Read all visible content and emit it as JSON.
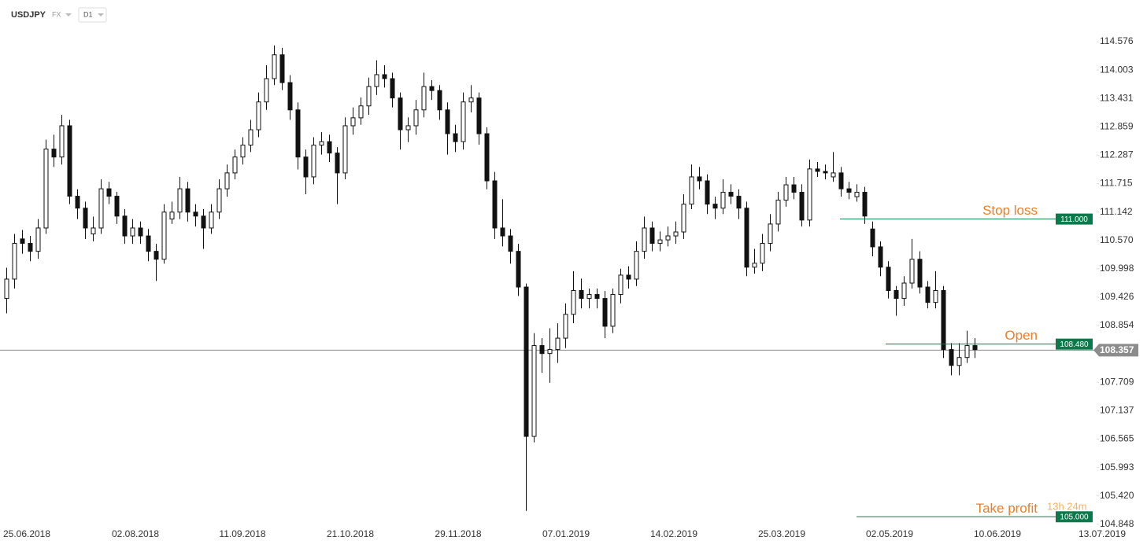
{
  "header": {
    "symbol": "USDJPY",
    "market": "FX",
    "timeframe": "D1"
  },
  "chart_data": {
    "type": "candlestick",
    "ylim": [
      104.64,
      114.86
    ],
    "yticks": [
      114.576,
      114.003,
      113.431,
      112.859,
      112.287,
      111.715,
      111.142,
      {
        "value": 110.57,
        "label": "110.570"
      },
      109.998,
      109.426,
      108.854,
      107.709,
      107.137,
      106.565,
      105.993,
      {
        "value": 105.42,
        "label": "105.420"
      },
      104.848
    ],
    "xlim": [
      -0.8,
      139.2
    ],
    "xticks": [
      {
        "value": 2.6,
        "label": "25.06.2018"
      },
      {
        "value": 16.4,
        "label": "02.08.2018"
      },
      {
        "value": 30,
        "label": "11.09.2018"
      },
      {
        "value": 43.7,
        "label": "21.10.2018"
      },
      {
        "value": 57.4,
        "label": "29.11.2018"
      },
      {
        "value": 71.1,
        "label": "07.01.2019"
      },
      {
        "value": 84.8,
        "label": "14.02.2019"
      },
      {
        "value": 98.5,
        "label": "25.03.2019"
      },
      {
        "value": 112.2,
        "label": "02.05.2019"
      },
      {
        "value": 125.9,
        "label": "10.06.2019"
      },
      {
        "value": 139.2,
        "label": "13.07.2019"
      }
    ],
    "up_color": "#ffffff",
    "down_color": "#111111",
    "outline_color": "#111111",
    "ohlc": [
      [
        109.4,
        110.02,
        109.1,
        109.79
      ],
      [
        109.79,
        110.7,
        109.6,
        110.51
      ],
      [
        110.6,
        110.78,
        110.3,
        110.51
      ],
      [
        110.51,
        110.66,
        110.15,
        110.35
      ],
      [
        110.35,
        111.0,
        110.2,
        110.82
      ],
      [
        110.82,
        112.6,
        110.7,
        112.41
      ],
      [
        112.41,
        112.7,
        112.05,
        112.25
      ],
      [
        112.25,
        113.1,
        112.1,
        112.88
      ],
      [
        112.88,
        113.0,
        111.3,
        111.46
      ],
      [
        111.46,
        111.6,
        111.0,
        111.22
      ],
      [
        111.22,
        111.35,
        110.6,
        110.82
      ],
      [
        110.7,
        111.05,
        110.55,
        110.82
      ],
      [
        110.82,
        111.8,
        110.7,
        111.61
      ],
      [
        111.61,
        111.75,
        111.3,
        111.46
      ],
      [
        111.46,
        111.55,
        110.9,
        111.06
      ],
      [
        111.06,
        111.2,
        110.5,
        110.66
      ],
      [
        110.66,
        111.0,
        110.5,
        110.82
      ],
      [
        110.82,
        110.95,
        110.5,
        110.66
      ],
      [
        110.66,
        110.8,
        110.15,
        110.35
      ],
      [
        110.35,
        110.5,
        109.75,
        110.19
      ],
      [
        110.19,
        111.3,
        110.1,
        111.14
      ],
      [
        111.0,
        111.35,
        110.9,
        111.14
      ],
      [
        111.14,
        111.85,
        111.0,
        111.61
      ],
      [
        111.61,
        111.75,
        110.95,
        111.14
      ],
      [
        111.14,
        111.3,
        110.85,
        111.06
      ],
      [
        111.06,
        111.2,
        110.4,
        110.82
      ],
      [
        110.82,
        111.3,
        110.7,
        111.14
      ],
      [
        111.14,
        111.8,
        111.0,
        111.61
      ],
      [
        111.61,
        112.1,
        111.45,
        111.93
      ],
      [
        111.93,
        112.4,
        111.8,
        112.25
      ],
      [
        112.25,
        112.65,
        112.1,
        112.49
      ],
      [
        112.49,
        113.0,
        112.35,
        112.8
      ],
      [
        112.8,
        113.55,
        112.65,
        113.36
      ],
      [
        113.36,
        114.1,
        113.2,
        113.83
      ],
      [
        113.83,
        114.5,
        113.7,
        114.31
      ],
      [
        114.31,
        114.45,
        113.6,
        113.75
      ],
      [
        113.75,
        113.9,
        113.0,
        113.2
      ],
      [
        113.2,
        113.35,
        112.0,
        112.25
      ],
      [
        112.25,
        112.4,
        111.5,
        111.85
      ],
      [
        111.85,
        112.65,
        111.7,
        112.49
      ],
      [
        112.49,
        112.75,
        112.3,
        112.56
      ],
      [
        112.56,
        112.7,
        112.15,
        112.33
      ],
      [
        112.33,
        112.45,
        111.3,
        111.93
      ],
      [
        111.93,
        113.05,
        111.8,
        112.88
      ],
      [
        112.88,
        113.25,
        112.7,
        113.04
      ],
      [
        113.04,
        113.45,
        112.9,
        113.28
      ],
      [
        113.28,
        113.85,
        113.1,
        113.67
      ],
      [
        113.67,
        114.2,
        113.5,
        113.91
      ],
      [
        113.91,
        114.1,
        113.65,
        113.83
      ],
      [
        113.83,
        113.95,
        113.25,
        113.44
      ],
      [
        113.44,
        113.55,
        112.4,
        112.8
      ],
      [
        112.8,
        113.05,
        112.55,
        112.88
      ],
      [
        112.88,
        113.4,
        112.7,
        113.2
      ],
      [
        113.2,
        113.95,
        113.05,
        113.67
      ],
      [
        113.67,
        113.8,
        113.4,
        113.59
      ],
      [
        113.59,
        113.7,
        113.0,
        113.2
      ],
      [
        113.2,
        113.35,
        112.3,
        112.72
      ],
      [
        112.72,
        112.9,
        112.35,
        112.56
      ],
      [
        112.56,
        113.55,
        112.4,
        113.36
      ],
      [
        113.36,
        113.7,
        113.15,
        113.44
      ],
      [
        113.44,
        113.55,
        112.5,
        112.72
      ],
      [
        112.72,
        112.85,
        111.6,
        111.77
      ],
      [
        111.77,
        111.95,
        110.6,
        110.82
      ],
      [
        110.82,
        111.4,
        110.45,
        110.66
      ],
      [
        110.66,
        110.8,
        110.1,
        110.35
      ],
      [
        110.35,
        110.5,
        109.45,
        109.63
      ],
      [
        109.63,
        109.7,
        105.12,
        106.62
      ],
      [
        106.62,
        108.7,
        106.5,
        108.45
      ],
      [
        108.45,
        108.6,
        107.9,
        108.29
      ],
      [
        108.29,
        108.8,
        107.7,
        108.37
      ],
      [
        108.37,
        108.9,
        108.1,
        108.6
      ],
      [
        108.6,
        109.3,
        108.4,
        109.08
      ],
      [
        109.08,
        109.95,
        108.9,
        109.56
      ],
      [
        109.56,
        109.8,
        109.2,
        109.4
      ],
      [
        109.4,
        109.6,
        109.2,
        109.48
      ],
      [
        109.48,
        109.6,
        109.2,
        109.4
      ],
      [
        109.4,
        109.55,
        108.6,
        108.84
      ],
      [
        108.84,
        109.6,
        108.7,
        109.48
      ],
      [
        109.48,
        110.0,
        109.3,
        109.87
      ],
      [
        109.87,
        110.05,
        109.6,
        109.79
      ],
      [
        109.79,
        110.55,
        109.65,
        110.35
      ],
      [
        110.35,
        111.05,
        110.2,
        110.82
      ],
      [
        110.82,
        110.95,
        110.35,
        110.51
      ],
      [
        110.51,
        110.75,
        110.35,
        110.58
      ],
      [
        110.58,
        110.85,
        110.45,
        110.66
      ],
      [
        110.66,
        110.95,
        110.5,
        110.74
      ],
      [
        110.74,
        111.5,
        110.6,
        111.3
      ],
      [
        111.3,
        112.1,
        111.2,
        111.85
      ],
      [
        111.85,
        112.05,
        111.6,
        111.77
      ],
      [
        111.77,
        111.9,
        111.1,
        111.3
      ],
      [
        111.3,
        111.45,
        111.0,
        111.22
      ],
      [
        111.22,
        111.8,
        111.1,
        111.54
      ],
      [
        111.54,
        111.7,
        111.3,
        111.46
      ],
      [
        111.46,
        111.6,
        111.0,
        111.22
      ],
      [
        111.22,
        111.35,
        109.85,
        110.03
      ],
      [
        110.03,
        110.4,
        109.9,
        110.11
      ],
      [
        110.11,
        110.7,
        109.95,
        110.51
      ],
      [
        110.51,
        111.1,
        110.35,
        110.9
      ],
      [
        110.9,
        111.55,
        110.75,
        111.38
      ],
      [
        111.38,
        111.85,
        111.25,
        111.69
      ],
      [
        111.69,
        111.85,
        111.4,
        111.54
      ],
      [
        111.54,
        111.7,
        110.85,
        110.98
      ],
      [
        110.98,
        112.2,
        110.85,
        112.01
      ],
      [
        112.01,
        112.15,
        111.85,
        111.96
      ],
      [
        111.96,
        112.1,
        111.8,
        111.93
      ],
      [
        111.85,
        112.35,
        111.75,
        111.93
      ],
      [
        111.93,
        112.05,
        111.45,
        111.61
      ],
      [
        111.61,
        111.75,
        111.4,
        111.54
      ],
      [
        111.45,
        111.7,
        111.35,
        111.54
      ],
      [
        111.54,
        111.65,
        110.9,
        111.06
      ],
      [
        110.8,
        110.95,
        110.25,
        110.44
      ],
      [
        110.44,
        110.55,
        109.85,
        110.03
      ],
      [
        110.03,
        110.15,
        109.4,
        109.56
      ],
      [
        109.56,
        109.65,
        109.05,
        109.4
      ],
      [
        109.4,
        109.85,
        109.25,
        109.71
      ],
      [
        109.71,
        110.6,
        109.6,
        110.19
      ],
      [
        110.19,
        110.35,
        109.5,
        109.63
      ],
      [
        109.63,
        109.75,
        109.2,
        109.32
      ],
      [
        109.32,
        109.95,
        109.2,
        109.56
      ],
      [
        109.56,
        109.65,
        108.2,
        108.37
      ],
      [
        108.37,
        108.5,
        107.85,
        108.05
      ],
      [
        108.05,
        108.5,
        107.85,
        108.21
      ],
      [
        108.21,
        108.75,
        108.1,
        108.45
      ],
      [
        108.45,
        108.6,
        108.2,
        108.37
      ]
    ],
    "levels": [
      {
        "name": "Stop loss",
        "value": 111,
        "value_label": "111.000",
        "color": "#0b7a4b"
      },
      {
        "name": "Open",
        "value": 108.48,
        "value_label": "108.480",
        "color": "#0b7a4b"
      },
      {
        "name": "Take profit",
        "value": 105,
        "value_label": "105.000",
        "color": "#0b7a4b"
      }
    ],
    "last_price": 108.357,
    "last_price_color": "#8c8c8c",
    "countdown": "13h 24m"
  }
}
